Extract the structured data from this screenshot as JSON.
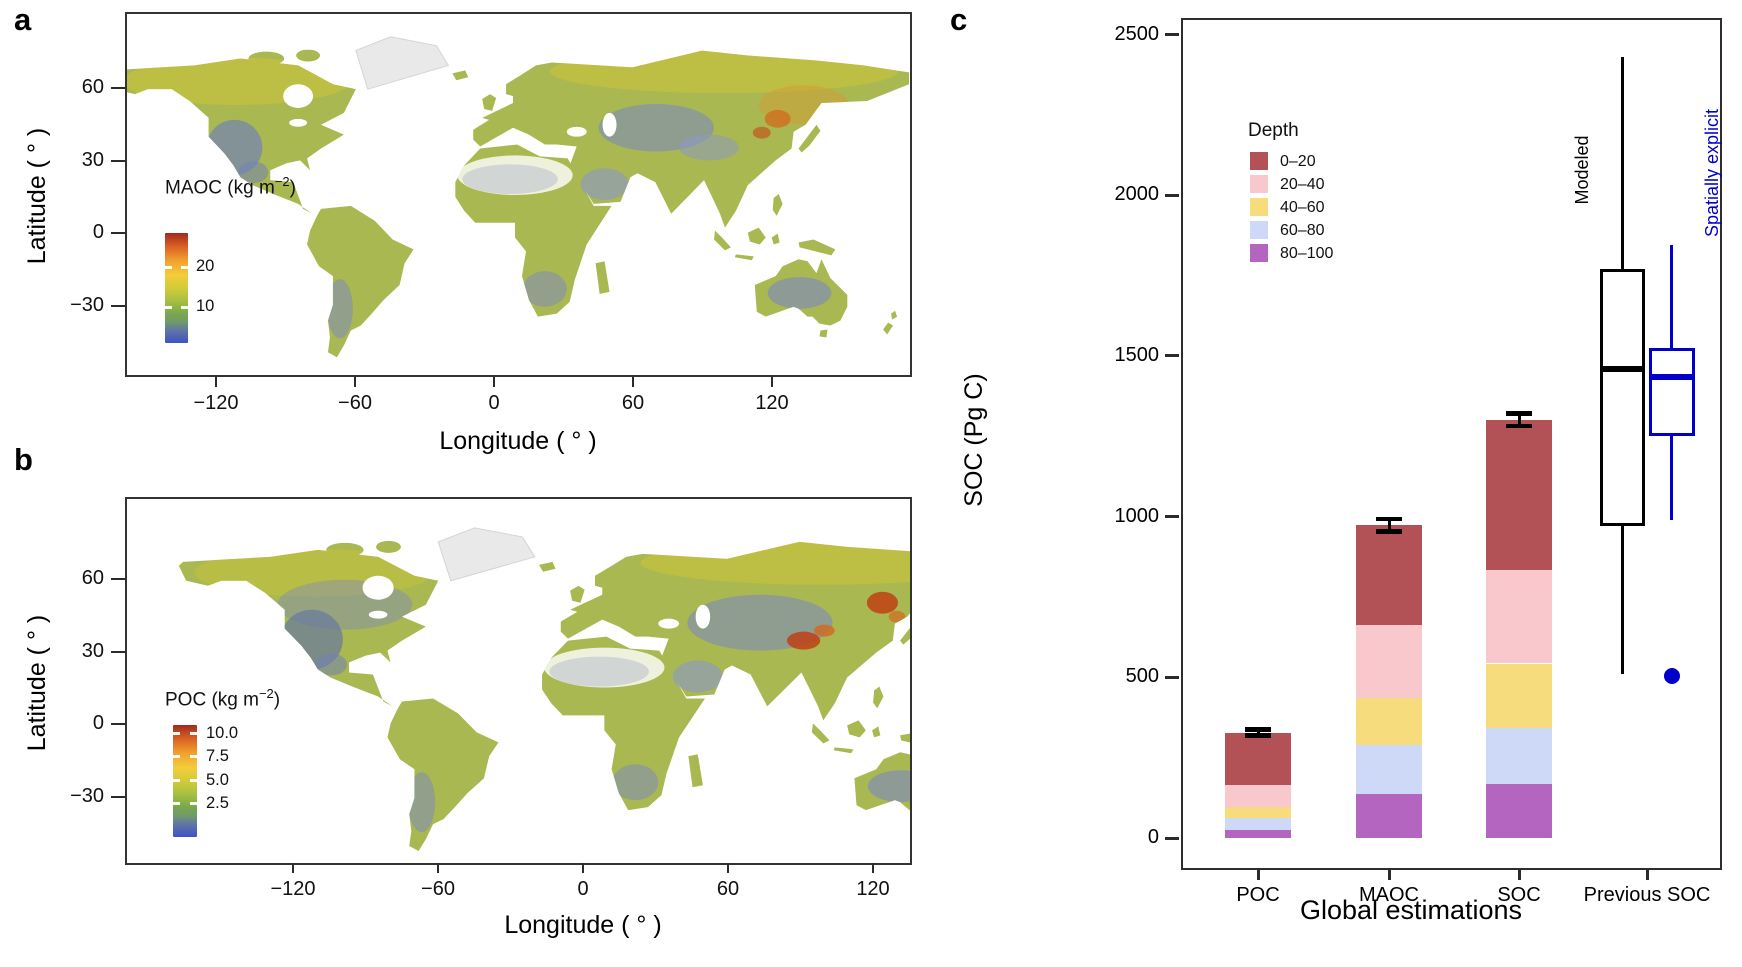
{
  "figure": {
    "panels": {
      "a": {
        "label": "a",
        "xlabel": "Longitude ( ° )",
        "ylabel": "Latitude ( ° )",
        "x_ticks": [
          "−120",
          "−60",
          "0",
          "60",
          "120"
        ],
        "y_ticks": [
          "60",
          "30",
          "0",
          "−30"
        ],
        "legend": {
          "title_prefix": "MAOC (kg m",
          "title_sup": "−2",
          "title_suffix": ")",
          "ticks": [
            "20",
            "10"
          ]
        }
      },
      "b": {
        "label": "b",
        "xlabel": "Longitude ( ° )",
        "ylabel": "Latitude ( ° )",
        "x_ticks": [
          "−120",
          "−60",
          "0",
          "60",
          "120"
        ],
        "y_ticks": [
          "60",
          "30",
          "0",
          "−30"
        ],
        "legend": {
          "title_prefix": "POC (kg m",
          "title_sup": "−2",
          "title_suffix": ")",
          "ticks": [
            "10.0",
            "7.5",
            "5.0",
            "2.5"
          ]
        }
      },
      "c": {
        "label": "c",
        "xlabel": "Global estimations",
        "ylabel": "SOC (Pg C)",
        "y_ticks": [
          "0",
          "500",
          "1000",
          "1500",
          "2000",
          "2500"
        ],
        "categories": [
          "POC",
          "MAOC",
          "SOC",
          "Previous SOC"
        ],
        "legend": {
          "title": "Depth",
          "entries": [
            {
              "label": "0–20",
              "color": "#b25257"
            },
            {
              "label": "20–40",
              "color": "#f8c8cc"
            },
            {
              "label": "40–60",
              "color": "#f7dc7d"
            },
            {
              "label": "60–80",
              "color": "#cdd9f7"
            },
            {
              "label": "80–100",
              "color": "#b465bf"
            }
          ]
        },
        "annotations": {
          "modeled": "Modeled",
          "modeled_color": "#000000",
          "spatially_explicit": "Spatially explicit",
          "spatially_explicit_color": "#0000cd"
        }
      }
    }
  },
  "chart_data": [
    {
      "panel": "a",
      "type": "heatmap",
      "subtype": "global raster map",
      "variable": "MAOC",
      "units": "kg m−2",
      "xlabel": "Longitude ( ° )",
      "ylabel": "Latitude ( ° )",
      "x_tick_values": [
        -120,
        -60,
        0,
        60,
        120
      ],
      "y_tick_values": [
        60,
        30,
        0,
        -30
      ],
      "colorbar": {
        "title": "MAOC (kg m−2)",
        "tick_values": [
          20,
          10
        ],
        "gradient_top_to_bottom": [
          "#a02b1e 0%",
          "#d95f23 12%",
          "#f0a12f 25%",
          "#f3cc3b 38%",
          "#d2cc39 50%",
          "#a6bf43 62%",
          "#7aa84a 73%",
          "#6f9a6e 81%",
          "#5f73a8 89%",
          "#3e52c5 100%"
        ]
      },
      "notes": "High MAOC (orange/red) in boreal N America, Siberia, NE China; low (blue) in deserts/drylands; Greenland masked light gray."
    },
    {
      "panel": "b",
      "type": "heatmap",
      "subtype": "global raster map",
      "variable": "POC",
      "units": "kg m−2",
      "xlabel": "Longitude ( ° )",
      "ylabel": "Latitude ( ° )",
      "x_tick_values": [
        -120,
        -60,
        0,
        60,
        120
      ],
      "y_tick_values": [
        60,
        30,
        0,
        -30
      ],
      "colorbar": {
        "title": "POC (kg m−2)",
        "tick_values": [
          10.0,
          7.5,
          5.0,
          2.5
        ],
        "gradient_top_to_bottom": [
          "#a02b1e 0%",
          "#d95f23 12%",
          "#f0a12f 25%",
          "#f3cc3b 38%",
          "#d2cc39 50%",
          "#a6bf43 62%",
          "#7aa84a 73%",
          "#6f9a6e 81%",
          "#5f73a8 89%",
          "#3e52c5 100%"
        ]
      },
      "notes": "High POC (orange/red) hotspots on Tibetan Plateau and NE Asia; low (blue) in arid zones."
    },
    {
      "panel": "c",
      "type": "bar",
      "subtype": "stacked bars with boxplots",
      "xlabel": "Global estimations",
      "ylabel": "SOC (Pg C)",
      "ylim": [
        0,
        2500
      ],
      "y_tick_values": [
        0,
        500,
        1000,
        1500,
        2000,
        2500
      ],
      "categories": [
        "POC",
        "MAOC",
        "SOC",
        "Previous SOC"
      ],
      "depth_layers": [
        "0–20",
        "20–40",
        "40–60",
        "60–80",
        "80–100"
      ],
      "layer_colors": [
        "#b25257",
        "#f8c8cc",
        "#f7dc7d",
        "#cdd9f7",
        "#b465bf"
      ],
      "stacked_bars": [
        {
          "category": "POC",
          "segments_pg_c": [
            162,
            69,
            34,
            38,
            25
          ],
          "total": 328,
          "error": 10
        },
        {
          "category": "MAOC",
          "segments_pg_c": [
            311,
            226,
            147,
            151,
            138
          ],
          "total": 973,
          "error": 20
        },
        {
          "category": "SOC",
          "segments_pg_c": [
            467,
            292,
            200,
            174,
            169
          ],
          "total": 1302,
          "error": 20
        }
      ],
      "boxplots": [
        {
          "name": "Modeled",
          "color": "#000000",
          "min": 510,
          "q1": 970,
          "median": 1460,
          "q3": 1770,
          "max": 2430,
          "outliers": []
        },
        {
          "name": "Spatially explicit",
          "color": "#0000cd",
          "min": 990,
          "q1": 1250,
          "median": 1435,
          "q3": 1525,
          "max": 1845,
          "outliers": [
            505
          ]
        }
      ],
      "legend_title": "Depth",
      "legend_position": "upper-left"
    }
  ]
}
